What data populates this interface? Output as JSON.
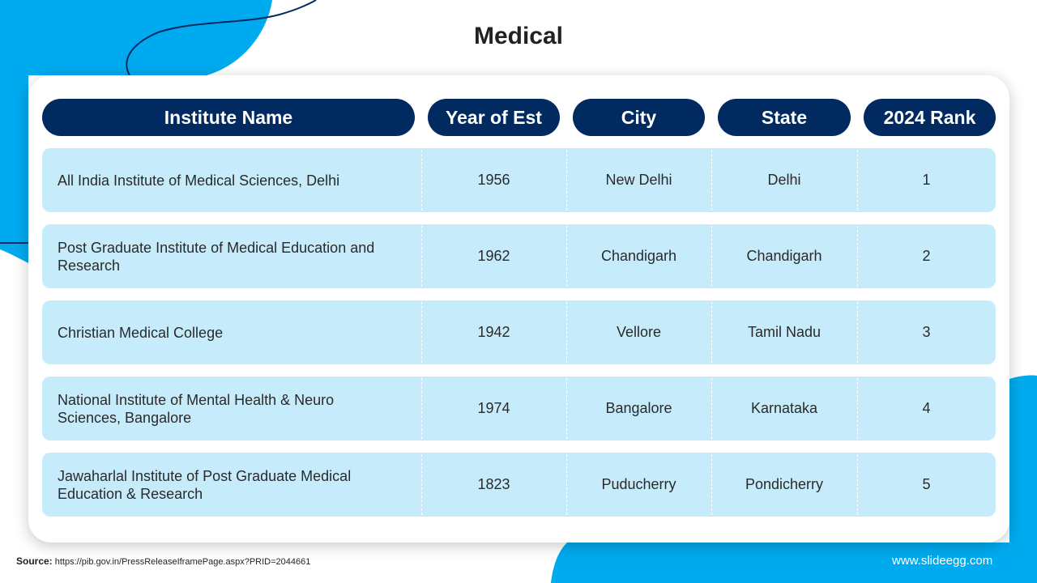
{
  "title": "Medical",
  "table": {
    "headers": [
      "Institute Name",
      "Year of Est",
      "City",
      "State",
      "2024 Rank"
    ],
    "rows": [
      {
        "name": "All India Institute of Medical Sciences, Delhi",
        "year": "1956",
        "city": "New Delhi",
        "state": "Delhi",
        "rank": "1"
      },
      {
        "name": "Post Graduate Institute of Medical Education and Research",
        "year": "1962",
        "city": "Chandigarh",
        "state": "Chandigarh",
        "rank": "2"
      },
      {
        "name": "Christian Medical College",
        "year": "1942",
        "city": "Vellore",
        "state": "Tamil Nadu",
        "rank": "3"
      },
      {
        "name": "National Institute of Mental Health & Neuro Sciences, Bangalore",
        "year": "1974",
        "city": "Bangalore",
        "state": "Karnataka",
        "rank": "4"
      },
      {
        "name": "Jawaharlal Institute of Post Graduate Medical Education & Research",
        "year": "1823",
        "city": "Puducherry",
        "state": "Pondicherry",
        "rank": "5"
      }
    ]
  },
  "source": {
    "label": "Source:",
    "url": "https://pib.gov.in/PressReleaseIframePage.aspx?PRID=2044661"
  },
  "brand": "www.slideegg.com",
  "colors": {
    "header": "#002a60",
    "row": "#c6ecfc",
    "accent": "#00aaee"
  }
}
